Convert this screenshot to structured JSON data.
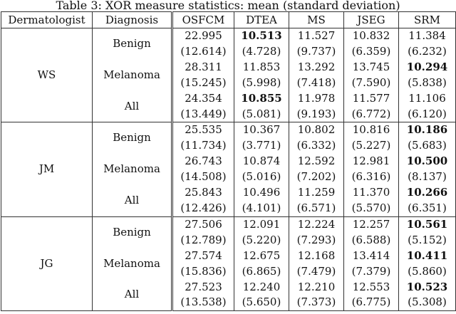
{
  "caption": "Table 3:  XOR measure statistics: mean (standard deviation)",
  "headers": [
    "Dermatologist",
    "Diagnosis",
    "OSFCM",
    "DTEA",
    "MS",
    "JSEG",
    "SRM"
  ],
  "groups": [
    {
      "dermatologist": "WS",
      "rows": [
        {
          "diagnosis": "Benign",
          "means": [
            "22.995",
            "10.513",
            "11.527",
            "10.832",
            "11.384"
          ],
          "sds": [
            "(12.614)",
            "(4.728)",
            "(9.737)",
            "(6.359)",
            "(6.232)"
          ],
          "bold": 1
        },
        {
          "diagnosis": "Melanoma",
          "means": [
            "28.311",
            "11.853",
            "13.292",
            "13.745",
            "10.294"
          ],
          "sds": [
            "(15.245)",
            "(5.998)",
            "(7.418)",
            "(7.590)",
            "(5.838)"
          ],
          "bold": 4
        },
        {
          "diagnosis": "All",
          "means": [
            "24.354",
            "10.855",
            "11.978",
            "11.577",
            "11.106"
          ],
          "sds": [
            "(13.449)",
            "(5.081)",
            "(9.193)",
            "(6.772)",
            "(6.120)"
          ],
          "bold": 1
        }
      ]
    },
    {
      "dermatologist": "JM",
      "rows": [
        {
          "diagnosis": "Benign",
          "means": [
            "25.535",
            "10.367",
            "10.802",
            "10.816",
            "10.186"
          ],
          "sds": [
            "(11.734)",
            "(3.771)",
            "(6.332)",
            "(5.227)",
            "(5.683)"
          ],
          "bold": 4
        },
        {
          "diagnosis": "Melanoma",
          "means": [
            "26.743",
            "10.874",
            "12.592",
            "12.981",
            "10.500"
          ],
          "sds": [
            "(14.508)",
            "(5.016)",
            "(7.202)",
            "(6.316)",
            "(8.137)"
          ],
          "bold": 4
        },
        {
          "diagnosis": "All",
          "means": [
            "25.843",
            "10.496",
            "11.259",
            "11.370",
            "10.266"
          ],
          "sds": [
            "(12.426)",
            "(4.101)",
            "(6.571)",
            "(5.570)",
            "(6.351)"
          ],
          "bold": 4
        }
      ]
    },
    {
      "dermatologist": "JG",
      "rows": [
        {
          "diagnosis": "Benign",
          "means": [
            "27.506",
            "12.091",
            "12.224",
            "12.257",
            "10.561"
          ],
          "sds": [
            "(12.789)",
            "(5.220)",
            "(7.293)",
            "(6.588)",
            "(5.152)"
          ],
          "bold": 4
        },
        {
          "diagnosis": "Melanoma",
          "means": [
            "27.574",
            "12.675",
            "12.168",
            "13.414",
            "10.411"
          ],
          "sds": [
            "(15.836)",
            "(6.865)",
            "(7.479)",
            "(7.379)",
            "(5.860)"
          ],
          "bold": 4
        },
        {
          "diagnosis": "All",
          "means": [
            "27.523",
            "12.240",
            "12.210",
            "12.553",
            "10.523"
          ],
          "sds": [
            "(13.538)",
            "(5.650)",
            "(7.373)",
            "(6.775)",
            "(5.308)"
          ],
          "bold": 4
        }
      ]
    }
  ]
}
